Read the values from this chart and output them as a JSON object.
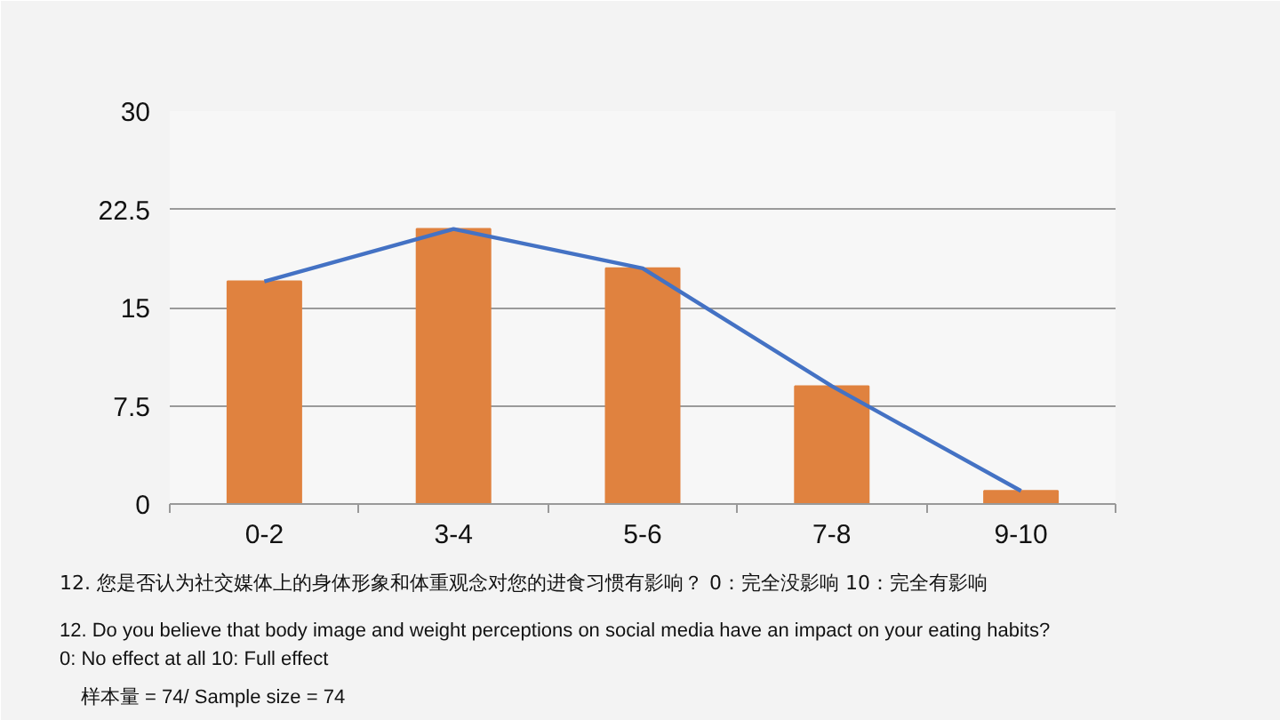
{
  "chart_data": {
    "type": "bar",
    "categories": [
      "0-2",
      "3-4",
      "5-6",
      "7-8",
      "9-10"
    ],
    "series": [
      {
        "color": "#e0823f",
        "values": [
          17,
          21,
          18,
          9,
          1
        ]
      },
      {
        "type": "line",
        "color": "#4472c4",
        "values": [
          17,
          21,
          18,
          9,
          1
        ]
      }
    ],
    "ylim": [
      0,
      30
    ],
    "yticks": [
      0,
      7.5,
      15,
      22.5,
      30
    ],
    "grid": "y",
    "annotations": [
      "12. 您是否认为社交媒体上的身体形象和体重观念对您的进食习惯有影响？ 0：完全没影响 10：完全有影响",
      "12. Do you believe that body image and weight perceptions on social media have an impact on your eating habits?",
      "0: No effect at all 10: Full effect",
      "样本量 = 74/ Sample size = 74"
    ]
  }
}
